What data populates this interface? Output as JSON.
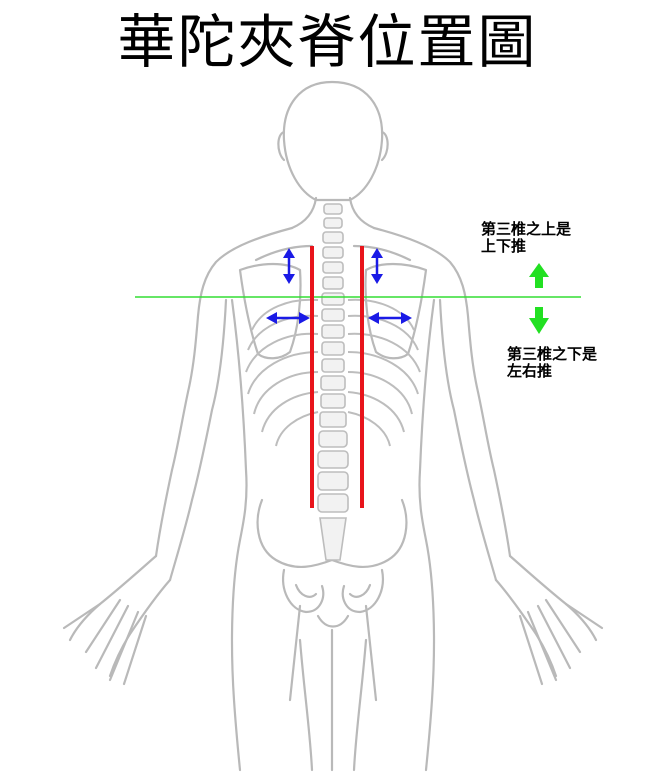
{
  "title": "華陀夾脊位置圖",
  "annotations": {
    "upper_line1": "第三椎之上是",
    "upper_line2": "上下推",
    "lower_line1": "第三椎之下是",
    "lower_line2": "左右推"
  },
  "colors": {
    "body_outline": "#b9b9b9",
    "spine_lines": "#e8141b",
    "divider_line": "#33dd33",
    "green_arrows": "#22e022",
    "blue_arrows": "#1a1ae6"
  },
  "icons": [
    "up-down-arrow-icon",
    "left-right-arrow-icon",
    "up-arrow-icon",
    "down-arrow-icon"
  ]
}
